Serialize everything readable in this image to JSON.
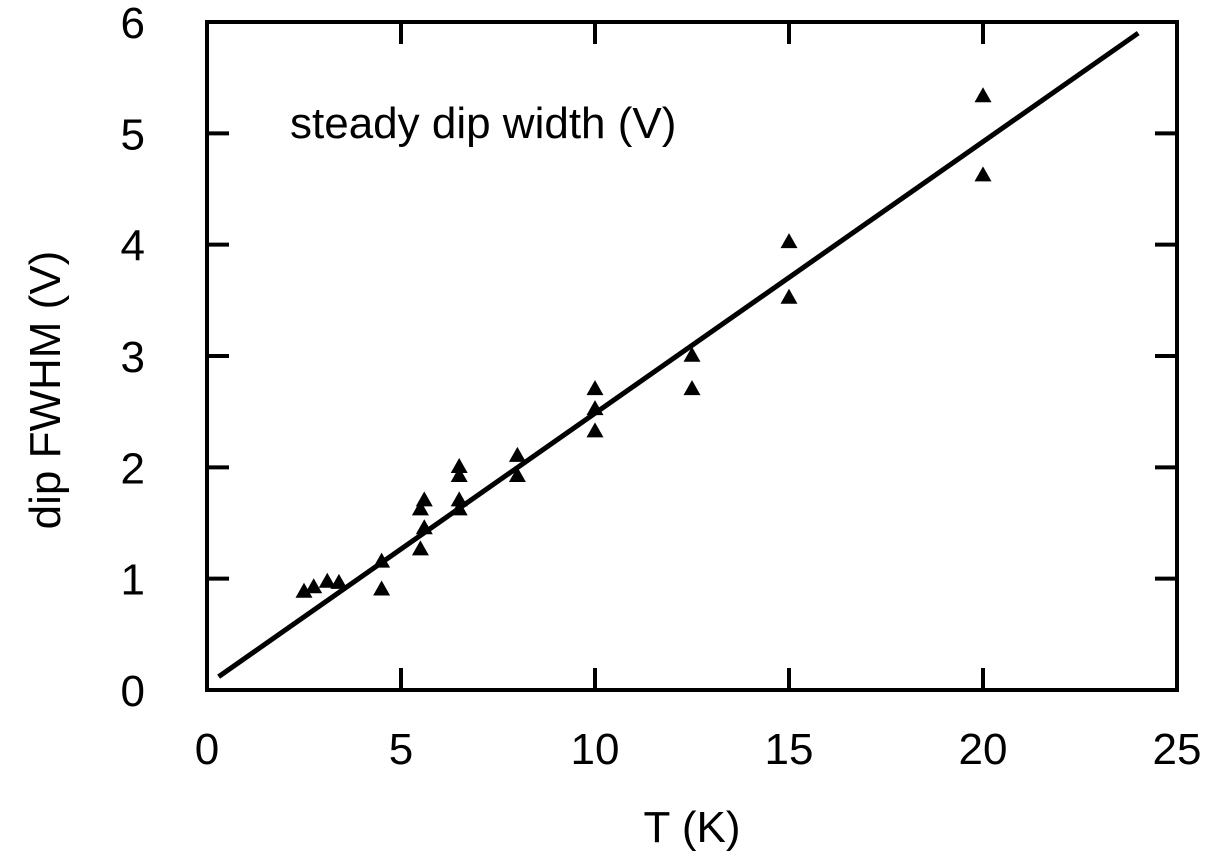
{
  "chart_data": {
    "type": "scatter",
    "title": "",
    "xlabel": "T (K)",
    "ylabel": "dip FWHM (V)",
    "annotation": "steady dip width (V)",
    "xlim": [
      0,
      25
    ],
    "ylim": [
      0,
      6
    ],
    "xticks": [
      "0",
      "5",
      "10",
      "15",
      "20",
      "25"
    ],
    "yticks": [
      "0",
      "1",
      "2",
      "3",
      "4",
      "5",
      "6"
    ],
    "grid": false,
    "series": [
      {
        "marker": "triangle",
        "points": [
          {
            "x": 2.5,
            "y": 0.88
          },
          {
            "x": 2.75,
            "y": 0.92
          },
          {
            "x": 3.1,
            "y": 0.97
          },
          {
            "x": 3.4,
            "y": 0.96
          },
          {
            "x": 4.5,
            "y": 1.15
          },
          {
            "x": 4.5,
            "y": 0.9
          },
          {
            "x": 5.5,
            "y": 1.62
          },
          {
            "x": 5.5,
            "y": 1.26
          },
          {
            "x": 5.6,
            "y": 1.7
          },
          {
            "x": 5.6,
            "y": 1.45
          },
          {
            "x": 6.5,
            "y": 2.0
          },
          {
            "x": 6.5,
            "y": 1.92
          },
          {
            "x": 6.5,
            "y": 1.7
          },
          {
            "x": 6.5,
            "y": 1.62
          },
          {
            "x": 8.0,
            "y": 2.1
          },
          {
            "x": 8.0,
            "y": 1.92
          },
          {
            "x": 10.0,
            "y": 2.7
          },
          {
            "x": 10.0,
            "y": 2.52
          },
          {
            "x": 10.0,
            "y": 2.32
          },
          {
            "x": 12.5,
            "y": 3.0
          },
          {
            "x": 12.5,
            "y": 2.7
          },
          {
            "x": 15.0,
            "y": 4.02
          },
          {
            "x": 15.0,
            "y": 3.52
          },
          {
            "x": 20.0,
            "y": 5.33
          },
          {
            "x": 20.0,
            "y": 4.62
          }
        ]
      },
      {
        "type": "line",
        "points": [
          {
            "x": 0.3,
            "y": 0.12
          },
          {
            "x": 24.0,
            "y": 5.9
          }
        ]
      }
    ],
    "color": "#000000"
  }
}
